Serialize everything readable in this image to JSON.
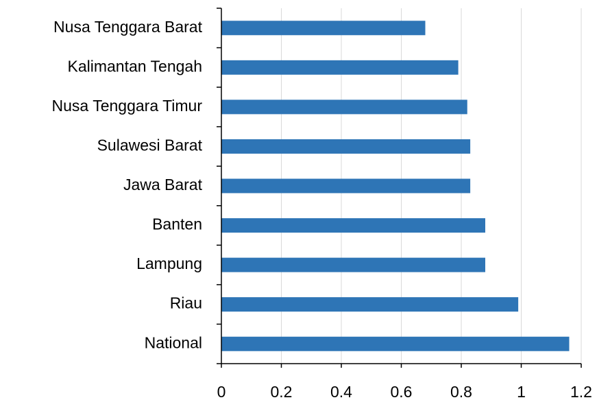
{
  "chart_data": {
    "type": "barh",
    "categories": [
      "Nusa Tenggara Barat",
      "Kalimantan Tengah",
      "Nusa Tenggara Timur",
      "Sulawesi Barat",
      "Jawa Barat",
      "Banten",
      "Lampung",
      "Riau",
      "National"
    ],
    "values": [
      0.68,
      0.79,
      0.82,
      0.83,
      0.83,
      0.88,
      0.88,
      0.99,
      1.16
    ],
    "color": "#2e75b6",
    "xlim": [
      0,
      1.2
    ],
    "xticks": [
      0,
      0.2,
      0.4,
      0.6,
      0.8,
      1,
      1.2
    ],
    "grid": true
  }
}
